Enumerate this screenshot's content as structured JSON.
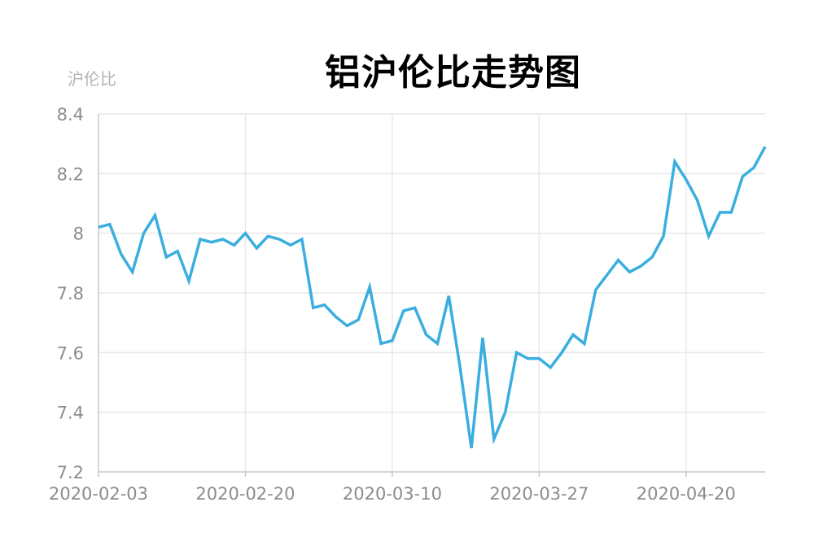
{
  "chart_data": {
    "type": "line",
    "title": "铝沪伦比走势图",
    "ylabel": "沪伦比",
    "xlabel": "",
    "ylim": [
      7.2,
      8.4
    ],
    "yticks": [
      "7.2",
      "7.4",
      "7.6",
      "7.8",
      "8",
      "8.2",
      "8.4"
    ],
    "ytick_values": [
      7.2,
      7.4,
      7.6,
      7.8,
      8.0,
      8.2,
      8.4
    ],
    "xticks": [
      "2020-02-03",
      "2020-02-20",
      "2020-03-10",
      "2020-03-27",
      "2020-04-20"
    ],
    "grid": true,
    "line_color": "#3aaedf",
    "series": [
      {
        "values": [
          8.02,
          8.03,
          7.93,
          7.87,
          8.0,
          8.06,
          7.92,
          7.94,
          7.84,
          7.98,
          7.97,
          7.98,
          7.96,
          8.0,
          7.95,
          7.99,
          7.98,
          7.96,
          7.98,
          7.75,
          7.76,
          7.72,
          7.69,
          7.71,
          7.82,
          7.63,
          7.64,
          7.74,
          7.75,
          7.66,
          7.63,
          7.79,
          7.55,
          7.28,
          7.65,
          7.31,
          7.4,
          7.6,
          7.58,
          7.58,
          7.55,
          7.6,
          7.66,
          7.63,
          7.81,
          7.86,
          7.91,
          7.87,
          7.89,
          7.92,
          7.99,
          8.24,
          8.18,
          8.11,
          7.99,
          8.07,
          8.07,
          8.19,
          8.22,
          8.29
        ]
      }
    ]
  }
}
